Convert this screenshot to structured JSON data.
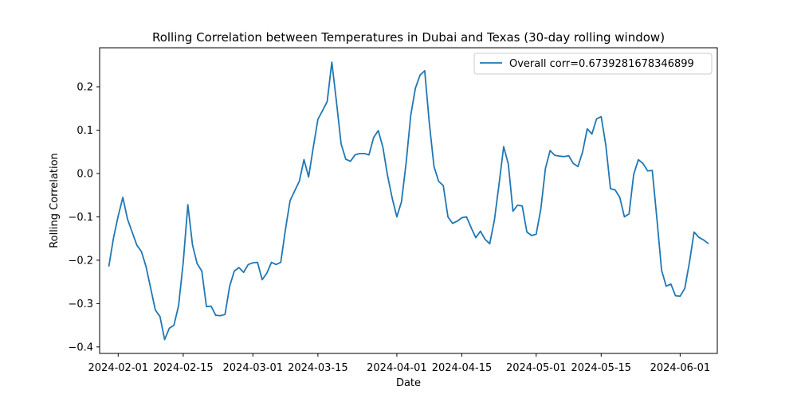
{
  "chart_data": {
    "type": "line",
    "title": "Rolling Correlation between Temperatures in Dubai and Texas (30-day rolling window)",
    "xlabel": "Date",
    "ylabel": "Rolling Correlation",
    "xlim": [
      "2024-01-28",
      "2024-06-09"
    ],
    "ylim": [
      -0.415,
      0.29
    ],
    "xticks": [
      "2024-02-01",
      "2024-02-15",
      "2024-03-01",
      "2024-03-15",
      "2024-04-01",
      "2024-04-15",
      "2024-05-01",
      "2024-05-15",
      "2024-06-01"
    ],
    "yticks": [
      -0.4,
      -0.3,
      -0.2,
      -0.1,
      0.0,
      0.1,
      0.2
    ],
    "ytick_labels": [
      "−0.4",
      "−0.3",
      "−0.2",
      "−0.1",
      "0.0",
      "0.1",
      "0.2"
    ],
    "grid": false,
    "legend_position": "top-right",
    "series": [
      {
        "name": "Overall corr=0.6739281678346899",
        "color": "#1f77b4",
        "start_date": "2024-01-30",
        "values": [
          -0.213,
          -0.148,
          -0.098,
          -0.055,
          -0.105,
          -0.135,
          -0.165,
          -0.18,
          -0.215,
          -0.265,
          -0.315,
          -0.33,
          -0.383,
          -0.357,
          -0.35,
          -0.305,
          -0.205,
          -0.072,
          -0.165,
          -0.208,
          -0.225,
          -0.307,
          -0.306,
          -0.327,
          -0.328,
          -0.325,
          -0.26,
          -0.225,
          -0.217,
          -0.228,
          -0.21,
          -0.206,
          -0.205,
          -0.245,
          -0.23,
          -0.205,
          -0.21,
          -0.205,
          -0.13,
          -0.063,
          -0.04,
          -0.018,
          0.032,
          -0.008,
          0.06,
          0.125,
          0.145,
          0.166,
          0.257,
          0.165,
          0.068,
          0.033,
          0.028,
          0.043,
          0.046,
          0.046,
          0.043,
          0.083,
          0.099,
          0.06,
          -0.005,
          -0.057,
          -0.1,
          -0.065,
          0.025,
          0.135,
          0.197,
          0.227,
          0.237,
          0.115,
          0.016,
          -0.018,
          -0.028,
          -0.1,
          -0.115,
          -0.11,
          -0.102,
          -0.1,
          -0.125,
          -0.148,
          -0.133,
          -0.152,
          -0.162,
          -0.108,
          -0.025,
          0.062,
          0.022,
          -0.087,
          -0.073,
          -0.075,
          -0.135,
          -0.143,
          -0.14,
          -0.082,
          0.012,
          0.053,
          0.042,
          0.04,
          0.039,
          0.041,
          0.023,
          0.016,
          0.05,
          0.103,
          0.091,
          0.126,
          0.131,
          0.065,
          -0.035,
          -0.038,
          -0.055,
          -0.1,
          -0.093,
          -0.002,
          0.032,
          0.023,
          0.006,
          0.007,
          -0.105,
          -0.223,
          -0.26,
          -0.255,
          -0.282,
          -0.283,
          -0.265,
          -0.205,
          -0.135,
          -0.147,
          -0.153,
          -0.161
        ]
      }
    ]
  }
}
